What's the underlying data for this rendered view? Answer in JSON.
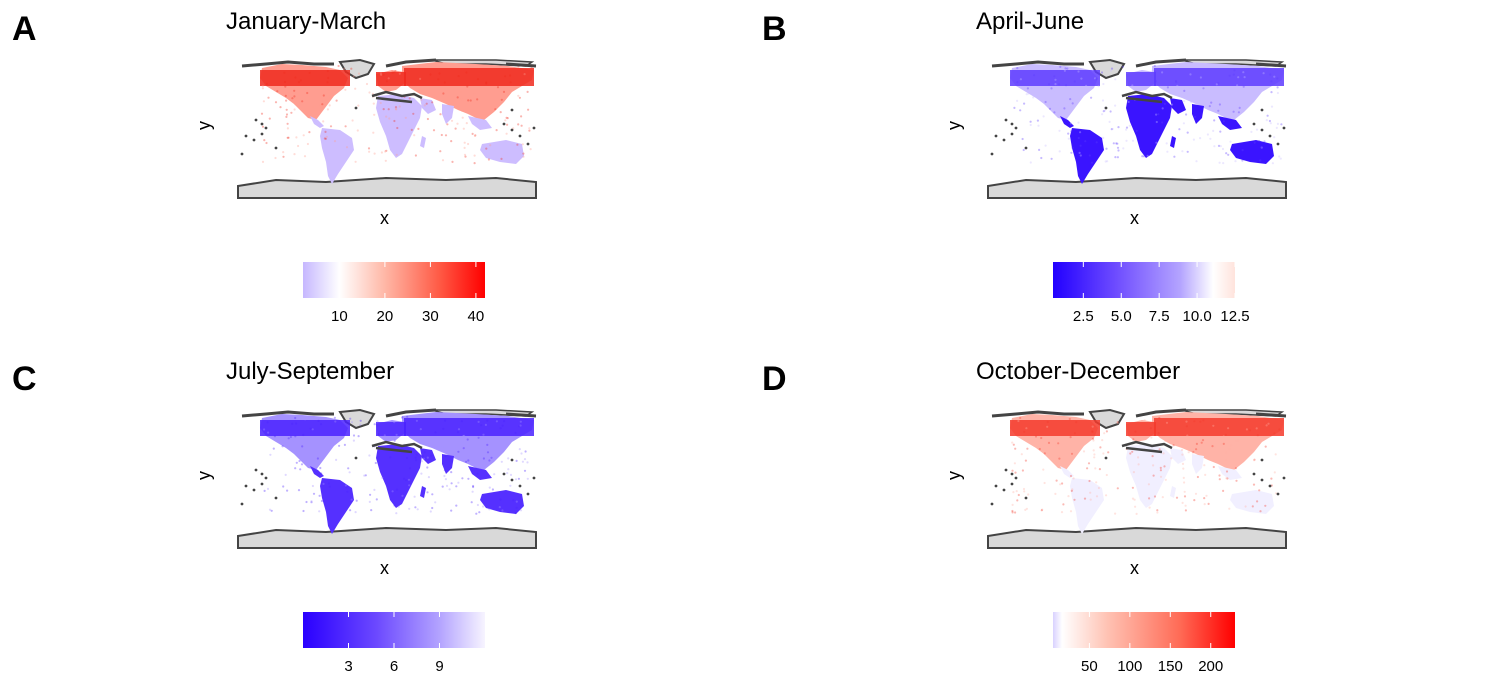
{
  "axis": {
    "x_label": "x",
    "y_label": "y"
  },
  "panels": [
    {
      "tag": "A",
      "title": "January-March",
      "colorbar": {
        "colors": [
          "#c6b7ff",
          "#ffffff",
          "#ffb7a6",
          "#ff5a45",
          "#ff0000"
        ],
        "stops": [
          0,
          0.2,
          0.45,
          0.75,
          1.0
        ],
        "range": [
          2,
          42
        ],
        "ticks": [
          10,
          20,
          30,
          40
        ]
      },
      "map_colors": {
        "north": "#f02a1e",
        "south": "#cdbdff",
        "mix": "#ff9d90"
      }
    },
    {
      "tag": "B",
      "title": "April-June",
      "colorbar": {
        "colors": [
          "#2200ff",
          "#6f4dff",
          "#b4a4ff",
          "#ffffff",
          "#ffe3dc"
        ],
        "stops": [
          0,
          0.35,
          0.7,
          0.88,
          1.0
        ],
        "range": [
          0.5,
          12.5
        ],
        "ticks": [
          2.5,
          5.0,
          7.5,
          10.0,
          12.5
        ],
        "tick_labels": [
          "2.5",
          "5.0",
          "7.5",
          "10.0",
          "12.5"
        ]
      },
      "map_colors": {
        "north": "#5e3cff",
        "south": "#3a14ff",
        "mix": "#c9bcff"
      }
    },
    {
      "tag": "C",
      "title": "July-September",
      "colorbar": {
        "colors": [
          "#2a00ff",
          "#6b48ff",
          "#b3a3ff",
          "#f7f4ff"
        ],
        "stops": [
          0,
          0.4,
          0.75,
          1.0
        ],
        "range": [
          0,
          12
        ],
        "ticks": [
          3,
          6,
          9
        ]
      },
      "map_colors": {
        "north": "#4a22ff",
        "south": "#5530ff",
        "mix": "#a592ff"
      }
    },
    {
      "tag": "D",
      "title": "October-December",
      "colorbar": {
        "colors": [
          "#d9d2ff",
          "#ffffff",
          "#ffc2b3",
          "#ff6a55",
          "#ff0000"
        ],
        "stops": [
          0,
          0.05,
          0.3,
          0.7,
          1.0
        ],
        "range": [
          5,
          230
        ],
        "ticks": [
          50,
          100,
          150,
          200
        ]
      },
      "map_colors": {
        "north": "#f43a2c",
        "south": "#f1efff",
        "mix": "#ffb3a7"
      }
    }
  ]
}
